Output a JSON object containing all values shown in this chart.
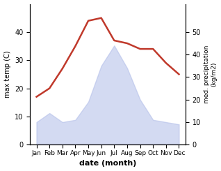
{
  "months": [
    "Jan",
    "Feb",
    "Mar",
    "Apr",
    "May",
    "Jun",
    "Jul",
    "Aug",
    "Sep",
    "Oct",
    "Nov",
    "Dec"
  ],
  "temperature": [
    17,
    20,
    27,
    35,
    44,
    45,
    37,
    36,
    34,
    34,
    29,
    25
  ],
  "precipitation": [
    10,
    14,
    10,
    11,
    19,
    35,
    44,
    34,
    20,
    11,
    10,
    9
  ],
  "temp_ylim": [
    0,
    50
  ],
  "temp_yticks": [
    0,
    10,
    20,
    30,
    40
  ],
  "precip_ylim": [
    0,
    62.5
  ],
  "precip_yticks": [
    0,
    10,
    20,
    30,
    40,
    50
  ],
  "xlabel": "date (month)",
  "ylabel_left": "max temp (C)",
  "ylabel_right": "med. precipitation\n(kg/m2)",
  "line_color": "#c0392b",
  "fill_color": "#b0bce8",
  "fill_alpha": 0.55,
  "background_color": "#ffffff",
  "figsize": [
    3.18,
    2.45
  ],
  "dpi": 100
}
